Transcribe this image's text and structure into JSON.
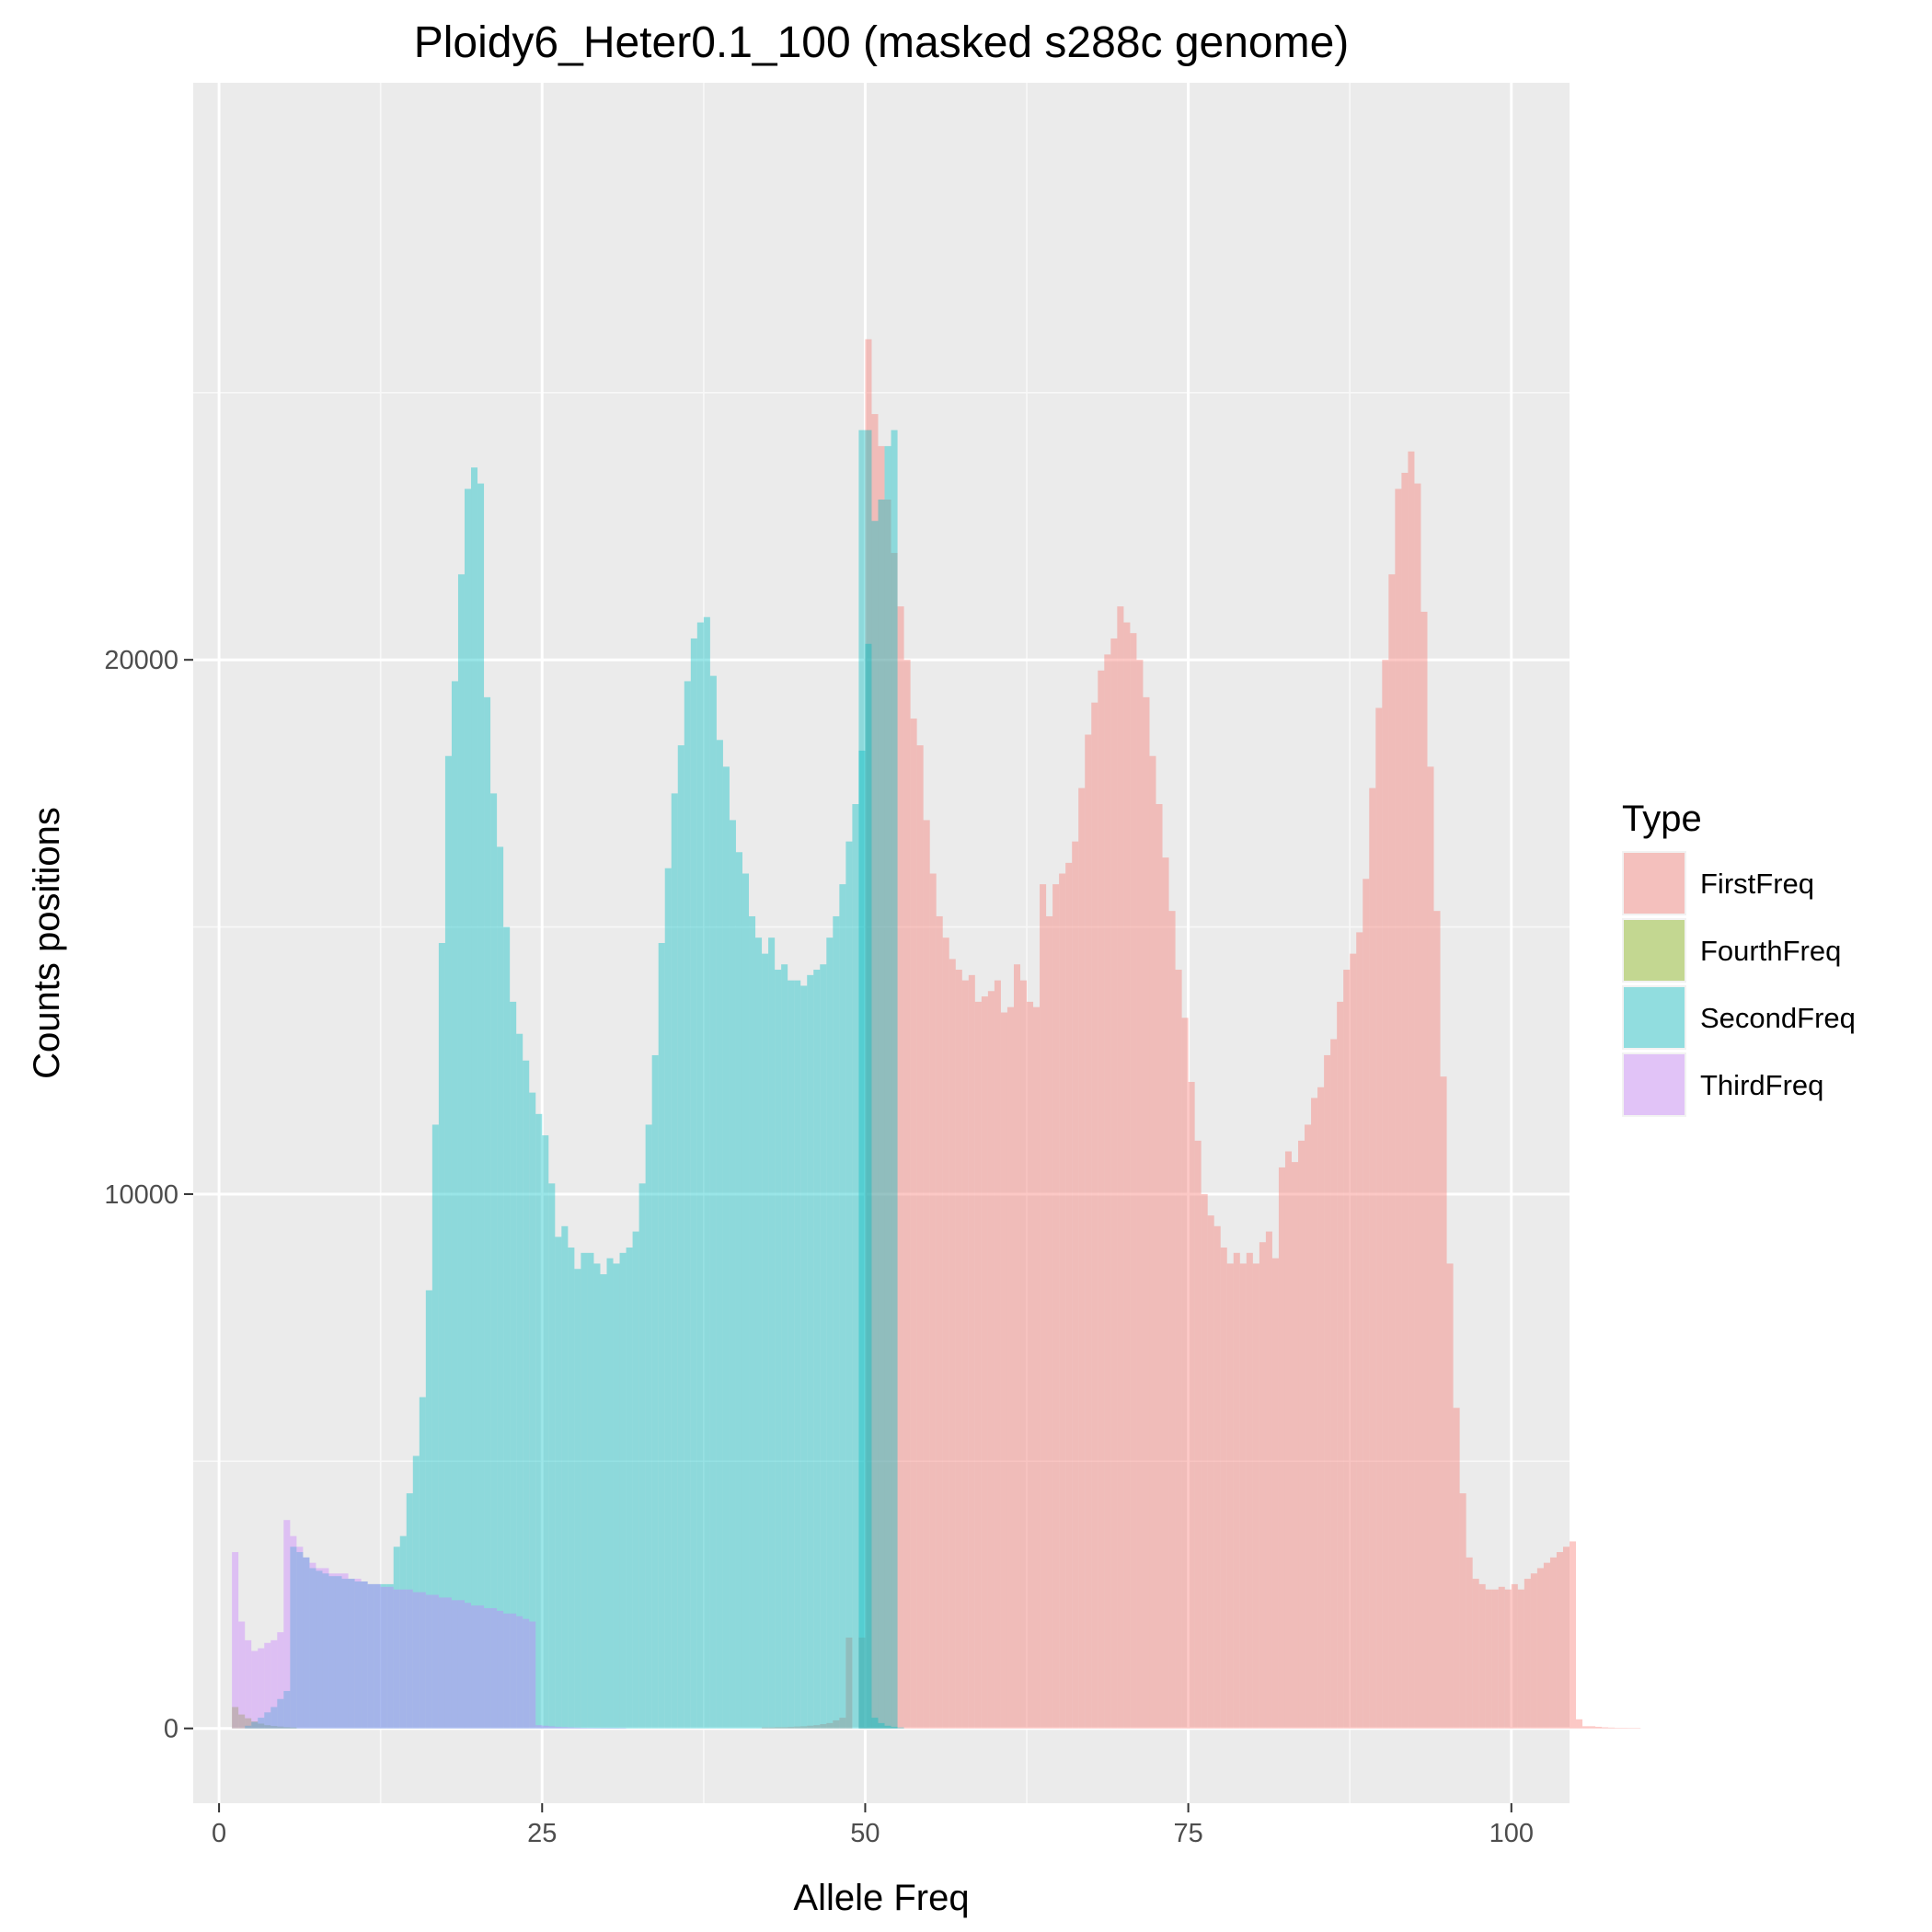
{
  "chart_data": {
    "type": "bar",
    "title": "Ploidy6_Heter0.1_100 (masked s288c genome)",
    "xlabel": "Allele Freq",
    "ylabel": "Counts positions",
    "xlim": [
      -2,
      104.5
    ],
    "ylim": [
      -1400,
      30800
    ],
    "x_ticks": [
      0,
      25,
      50,
      75,
      100
    ],
    "y_ticks": [
      0,
      10000,
      20000
    ],
    "y_minor": [
      5000,
      15000,
      25000
    ],
    "grid": true,
    "legend_position": "right",
    "legend_title": "Type",
    "bin_width": 0.5,
    "series": [
      {
        "name": "FirstFreq",
        "color": "#f8766d",
        "bins": [
          {
            "start": 42,
            "values": [
              20,
              20,
              25,
              25,
              30,
              35,
              40,
              50,
              60,
              80,
              100,
              150,
              200,
              1700
            ]
          },
          {
            "start": 49.5,
            "values": [
              1700
            ]
          },
          {
            "start": 50,
            "values": [
              26000,
              24600,
              24000,
              23000,
              22000,
              21000,
              20000,
              18900,
              18400,
              17000,
              16000,
              15200,
              14800,
              14400,
              14200,
              14000,
              14100,
              13600,
              13700,
              13800,
              14000,
              13400,
              13500,
              14300,
              14000,
              13600,
              13500,
              15800,
              15200,
              15800,
              16000,
              16200,
              16600,
              17600,
              18600,
              19200,
              19800,
              20100,
              20400,
              21000,
              20700,
              20500,
              20000,
              19300,
              18200,
              17300,
              16300,
              15300,
              14200,
              13300,
              12100,
              11000,
              10000,
              9600,
              9400,
              9000,
              8700,
              8900,
              8700,
              8900,
              8700,
              9100,
              9300,
              8800,
              10500,
              10800,
              10600,
              11000,
              11300,
              11800,
              12000,
              12600,
              12900,
              13600,
              14200,
              14500,
              14900,
              15900,
              17600,
              19100,
              20000,
              21600,
              23200,
              23500,
              23900,
              23300,
              20900,
              18000,
              15300,
              12200,
              8700,
              6000,
              4400,
              3200,
              2800,
              2700,
              2600,
              2600,
              2650,
              2600,
              2700,
              2600,
              2800,
              2900,
              3000,
              3100,
              3200,
              3300,
              3400,
              3500,
              170,
              40,
              40,
              30,
              20,
              15,
              10,
              10,
              5,
              5
            ]
          }
        ]
      },
      {
        "name": "FourthFreq",
        "color": "#7cae00",
        "bins": [
          {
            "start": 1,
            "values": [
              400,
              260,
              190,
              130,
              90,
              60,
              45,
              35,
              25,
              20
            ]
          }
        ]
      },
      {
        "name": "SecondFreq",
        "color": "#00bfc4",
        "bins": [
          {
            "start": 2,
            "values": [
              50,
              120,
              200,
              300,
              400,
              550,
              700,
              3400,
              3300,
              3200,
              3000,
              2950,
              2900,
              2850,
              2850,
              2800,
              2800,
              2750,
              2750,
              2700,
              2700,
              2700,
              2700,
              3400,
              3600,
              4400,
              5100,
              6200,
              8200,
              11300,
              14700,
              18200,
              19600,
              21600,
              23200,
              23600,
              23300,
              19300,
              17500,
              16500,
              15000,
              13600,
              13000,
              12500,
              11900,
              11500,
              11100,
              10200,
              9200,
              9400,
              9000,
              8600,
              8900,
              8900,
              8700,
              8500,
              8800,
              8700,
              8900,
              9000,
              9300,
              10200,
              11300,
              12600,
              14700,
              16100,
              17500,
              18400,
              19600,
              20400,
              20700,
              20800,
              19700,
              18500,
              18000,
              17000,
              16400,
              16000,
              15200,
              14800,
              14500,
              14800,
              14200,
              14300,
              14000,
              14000,
              13900,
              14100,
              14200,
              14300,
              14800,
              15200,
              15800,
              16600,
              17300,
              18300,
              20300,
              22600,
              23000,
              24000,
              24300
            ]
          },
          {
            "start": 49.5,
            "values": [
              24300,
              24300
            ]
          },
          {
            "start": 50.5,
            "values": [
              200,
              100,
              50,
              30,
              20
            ]
          }
        ]
      },
      {
        "name": "ThirdFreq",
        "color": "#c77cff",
        "bins": [
          {
            "start": 1,
            "values": [
              3300,
              2000,
              1650,
              1450,
              1500,
              1600,
              1650,
              1800,
              3900,
              3600,
              3400,
              3200,
              3100,
              3000,
              3000,
              2900,
              2900,
              2900,
              2800,
              2800,
              2750,
              2700,
              2700,
              2650,
              2650,
              2600,
              2600,
              2600,
              2550,
              2550,
              2500,
              2500,
              2450,
              2450,
              2400,
              2400,
              2350,
              2300,
              2300,
              2250,
              2250,
              2200,
              2150,
              2150,
              2100,
              2050,
              2000
            ]
          },
          {
            "start": 24.5,
            "values": [
              60,
              50,
              40,
              30,
              25,
              20,
              15,
              10,
              8,
              6,
              5,
              4,
              3,
              2
            ]
          }
        ]
      }
    ]
  },
  "legend": {
    "title": "Type",
    "items": [
      {
        "label": "FirstFreq",
        "color": "#f8766d"
      },
      {
        "label": "FourthFreq",
        "color": "#7cae00"
      },
      {
        "label": "SecondFreq",
        "color": "#00bfc4"
      },
      {
        "label": "ThirdFreq",
        "color": "#c77cff"
      }
    ]
  }
}
